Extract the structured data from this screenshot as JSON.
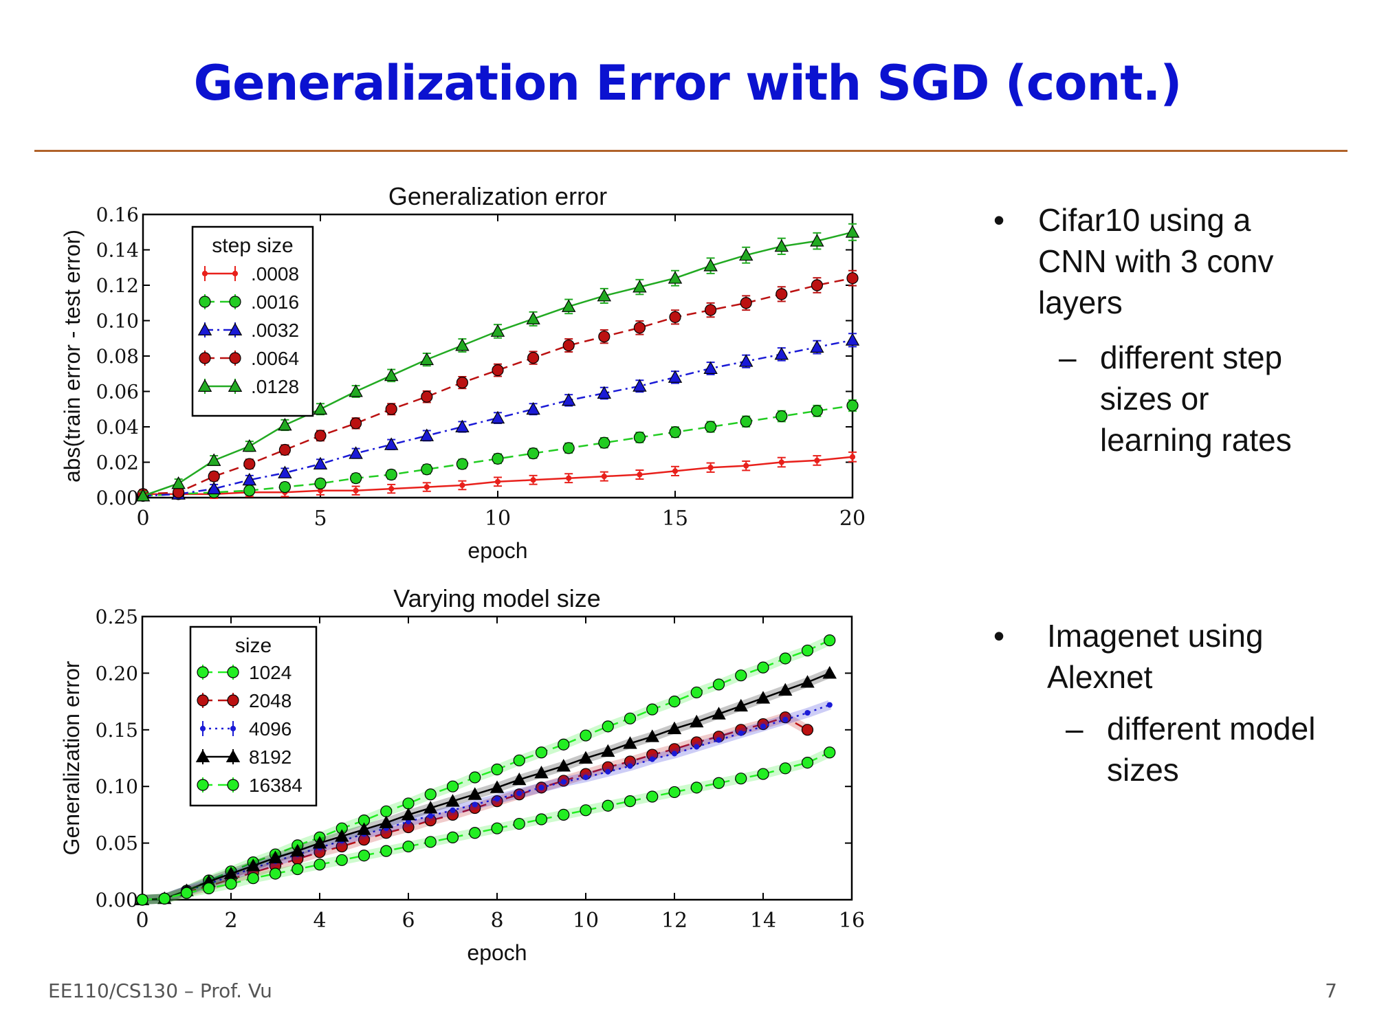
{
  "slide": {
    "title": "Generalization Error with SGD (cont.)",
    "footer_left": "EE110/CS130 – Prof. Vu",
    "page_number": "7"
  },
  "bullets": [
    {
      "symbol": "•",
      "text_lines": [
        "Cifar10 using a",
        "CNN with 3 conv",
        "layers"
      ],
      "sub_symbol": "–",
      "sub_lines": [
        "different step",
        "sizes or",
        "learning rates"
      ]
    },
    {
      "symbol": "•",
      "text_lines": [
        "Imagenet using",
        "Alexnet"
      ],
      "sub_symbol": "–",
      "sub_lines": [
        "different model",
        "sizes"
      ]
    }
  ],
  "colors": {
    "title": "#0b12d0",
    "rule": "#b0622a",
    "red": "#e8201b",
    "green": "#22cc22",
    "light_green": "#22ee22",
    "blue": "#1a1ad6",
    "dark_red": "#bb1111",
    "black": "#000000"
  },
  "chart_data": [
    {
      "type": "line",
      "title": "Generalization error",
      "xlabel": "epoch",
      "ylabel": "abs(train error - test error)",
      "xlim": [
        0,
        20
      ],
      "ylim": [
        0,
        0.16
      ],
      "xticks": [
        "0",
        "5",
        "10",
        "15",
        "20"
      ],
      "yticks": [
        "0.00",
        "0.02",
        "0.04",
        "0.06",
        "0.08",
        "0.10",
        "0.12",
        "0.14",
        "0.16"
      ],
      "legend_title": "step size",
      "legend_position": "top-left",
      "x": [
        0,
        1,
        2,
        3,
        4,
        5,
        6,
        7,
        8,
        9,
        10,
        11,
        12,
        13,
        14,
        15,
        16,
        17,
        18,
        19,
        20
      ],
      "series": [
        {
          "name": ".0008",
          "marker": "point",
          "dash": "solid",
          "color": "#e8201b",
          "values": [
            0.002,
            0.002,
            0.002,
            0.003,
            0.003,
            0.004,
            0.004,
            0.005,
            0.006,
            0.007,
            0.009,
            0.01,
            0.011,
            0.012,
            0.013,
            0.015,
            0.017,
            0.018,
            0.02,
            0.021,
            0.023
          ]
        },
        {
          "name": ".0016",
          "marker": "circle",
          "dash": "dashed",
          "color": "#22cc22",
          "values": [
            0.001,
            0.002,
            0.003,
            0.004,
            0.006,
            0.008,
            0.011,
            0.013,
            0.016,
            0.019,
            0.022,
            0.025,
            0.028,
            0.031,
            0.034,
            0.037,
            0.04,
            0.043,
            0.046,
            0.049,
            0.052
          ]
        },
        {
          "name": ".0032",
          "marker": "triangle",
          "dash": "dashdot",
          "color": "#1a1ad6",
          "values": [
            0.001,
            0.002,
            0.005,
            0.01,
            0.014,
            0.019,
            0.025,
            0.03,
            0.035,
            0.04,
            0.045,
            0.05,
            0.055,
            0.059,
            0.063,
            0.068,
            0.073,
            0.077,
            0.081,
            0.085,
            0.089
          ]
        },
        {
          "name": ".0064",
          "marker": "circle",
          "dash": "dashed",
          "color": "#bb1111",
          "values": [
            0.002,
            0.003,
            0.012,
            0.019,
            0.027,
            0.035,
            0.042,
            0.05,
            0.057,
            0.065,
            0.072,
            0.079,
            0.086,
            0.091,
            0.096,
            0.102,
            0.106,
            0.11,
            0.115,
            0.12,
            0.124
          ]
        },
        {
          "name": ".0128",
          "marker": "triangle",
          "dash": "solid",
          "color": "#22aa22",
          "values": [
            0.001,
            0.008,
            0.021,
            0.029,
            0.041,
            0.05,
            0.06,
            0.069,
            0.078,
            0.086,
            0.094,
            0.101,
            0.108,
            0.114,
            0.119,
            0.124,
            0.131,
            0.137,
            0.142,
            0.145,
            0.15
          ]
        }
      ]
    },
    {
      "type": "line",
      "title": "Varying model size",
      "xlabel": "epoch",
      "ylabel": "Generalization error",
      "xlim": [
        0,
        16
      ],
      "ylim": [
        0,
        0.25
      ],
      "xticks": [
        "0",
        "2",
        "4",
        "6",
        "8",
        "10",
        "12",
        "14",
        "16"
      ],
      "yticks": [
        "0.00",
        "0.05",
        "0.10",
        "0.15",
        "0.20",
        "0.25"
      ],
      "legend_title": "size",
      "legend_position": "top-left",
      "x": [
        0,
        0.5,
        1,
        1.5,
        2,
        2.5,
        3,
        3.5,
        4,
        4.5,
        5,
        5.5,
        6,
        6.5,
        7,
        7.5,
        8,
        8.5,
        9,
        9.5,
        10,
        10.5,
        11,
        11.5,
        12,
        12.5,
        13,
        13.5,
        14,
        14.5,
        15,
        15.5
      ],
      "series": [
        {
          "name": "1024",
          "marker": "circle",
          "dash": "dashed",
          "color": "#22ee22",
          "values": [
            0.0,
            0.001,
            0.008,
            0.017,
            0.025,
            0.033,
            0.04,
            0.048,
            0.055,
            0.063,
            0.07,
            0.078,
            0.085,
            0.093,
            0.1,
            0.108,
            0.115,
            0.123,
            0.13,
            0.137,
            0.145,
            0.153,
            0.16,
            0.168,
            0.175,
            0.183,
            0.19,
            0.198,
            0.205,
            0.213,
            0.22,
            0.229
          ]
        },
        {
          "name": "2048",
          "marker": "circle",
          "dash": "dashed",
          "color": "#bb1111",
          "values": [
            0.0,
            0.001,
            0.007,
            0.012,
            0.018,
            0.024,
            0.03,
            0.036,
            0.042,
            0.047,
            0.053,
            0.059,
            0.064,
            0.07,
            0.075,
            0.081,
            0.087,
            0.093,
            0.099,
            0.105,
            0.111,
            0.117,
            0.122,
            0.128,
            0.133,
            0.139,
            0.144,
            0.15,
            0.155,
            0.161,
            0.15,
            null
          ]
        },
        {
          "name": "4096",
          "marker": "point",
          "dash": "dotted",
          "color": "#1a1ad6",
          "values": [
            0.0,
            0.001,
            0.008,
            0.014,
            0.021,
            0.028,
            0.034,
            0.04,
            0.046,
            0.052,
            0.058,
            0.063,
            0.069,
            0.074,
            0.079,
            0.084,
            0.089,
            0.094,
            0.099,
            0.104,
            0.108,
            0.113,
            0.118,
            0.124,
            0.129,
            0.135,
            0.141,
            0.147,
            0.153,
            0.159,
            0.165,
            0.172
          ]
        },
        {
          "name": "8192",
          "marker": "triangle",
          "dash": "solid",
          "color": "#000000",
          "values": [
            0.0,
            0.001,
            0.008,
            0.016,
            0.023,
            0.03,
            0.037,
            0.043,
            0.05,
            0.056,
            0.062,
            0.068,
            0.075,
            0.081,
            0.087,
            0.093,
            0.099,
            0.106,
            0.112,
            0.118,
            0.125,
            0.131,
            0.138,
            0.144,
            0.151,
            0.157,
            0.164,
            0.171,
            0.178,
            0.185,
            0.192,
            0.2
          ]
        },
        {
          "name": "16384",
          "marker": "circle",
          "dash": "dashed",
          "color": "#22ee22",
          "values": [
            0.0,
            0.001,
            0.006,
            0.01,
            0.014,
            0.019,
            0.023,
            0.027,
            0.031,
            0.035,
            0.039,
            0.043,
            0.047,
            0.051,
            0.055,
            0.059,
            0.063,
            0.067,
            0.071,
            0.075,
            0.079,
            0.083,
            0.087,
            0.091,
            0.095,
            0.099,
            0.103,
            0.107,
            0.111,
            0.116,
            0.121,
            0.13
          ]
        }
      ]
    }
  ]
}
